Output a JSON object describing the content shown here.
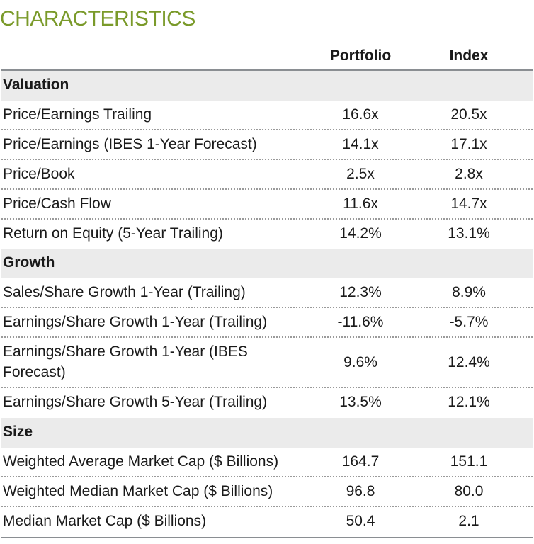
{
  "title": "CHARACTERISTICS",
  "columns": {
    "portfolio": "Portfolio",
    "index": "Index"
  },
  "sections": [
    {
      "name": "Valuation",
      "rows": [
        {
          "label": "Price/Earnings Trailing",
          "portfolio": "16.6x",
          "index": "20.5x"
        },
        {
          "label": "Price/Earnings (IBES 1-Year Forecast)",
          "portfolio": "14.1x",
          "index": "17.1x"
        },
        {
          "label": "Price/Book",
          "portfolio": "2.5x",
          "index": "2.8x"
        },
        {
          "label": "Price/Cash Flow",
          "portfolio": "11.6x",
          "index": "14.7x"
        },
        {
          "label": "Return on Equity (5-Year Trailing)",
          "portfolio": "14.2%",
          "index": "13.1%"
        }
      ]
    },
    {
      "name": "Growth",
      "rows": [
        {
          "label": "Sales/Share Growth 1-Year (Trailing)",
          "portfolio": "12.3%",
          "index": "8.9%"
        },
        {
          "label": "Earnings/Share Growth 1-Year (Trailing)",
          "portfolio": "-11.6%",
          "index": "-5.7%"
        },
        {
          "label": "Earnings/Share Growth 1-Year (IBES Forecast)",
          "portfolio": "9.6%",
          "index": "12.4%"
        },
        {
          "label": "Earnings/Share Growth 5-Year (Trailing)",
          "portfolio": "13.5%",
          "index": "12.1%"
        }
      ]
    },
    {
      "name": "Size",
      "rows": [
        {
          "label": "Weighted Average Market Cap ($ Billions)",
          "portfolio": "164.7",
          "index": "151.1"
        },
        {
          "label": "Weighted Median Market Cap ($ Billions)",
          "portfolio": "96.8",
          "index": "80.0"
        },
        {
          "label": "Median Market Cap ($ Billions)",
          "portfolio": "50.4",
          "index": "2.1"
        }
      ]
    }
  ]
}
